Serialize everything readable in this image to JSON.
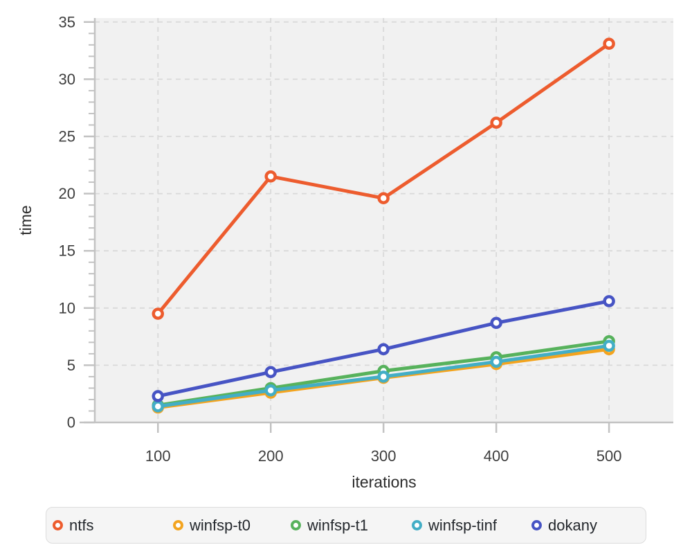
{
  "chart_data": {
    "type": "line",
    "x": [
      100,
      200,
      300,
      400,
      500
    ],
    "series": [
      {
        "name": "ntfs",
        "color": "#ed5c2e",
        "values": [
          9.5,
          21.5,
          19.6,
          26.2,
          33.1
        ]
      },
      {
        "name": "winfsp-t0",
        "color": "#f3a41f",
        "values": [
          1.3,
          2.6,
          3.9,
          5.1,
          6.4
        ]
      },
      {
        "name": "winfsp-t1",
        "color": "#57b25c",
        "values": [
          1.5,
          3.0,
          4.5,
          5.7,
          7.1
        ]
      },
      {
        "name": "winfsp-tinf",
        "color": "#43aec6",
        "values": [
          1.4,
          2.8,
          4.0,
          5.3,
          6.7
        ]
      },
      {
        "name": "dokany",
        "color": "#4754c4",
        "values": [
          2.3,
          4.4,
          6.4,
          8.7,
          10.6
        ]
      }
    ],
    "title": "",
    "xlabel": "iterations",
    "ylabel": "time",
    "xlim": [
      44,
      557
    ],
    "ylim": [
      0,
      35.35
    ],
    "y_major_ticks": [
      0,
      5,
      10,
      15,
      20,
      25,
      30,
      35
    ],
    "y_minor_step": 1,
    "x_ticks": [
      100,
      200,
      300,
      400,
      500
    ],
    "grid": true,
    "grid_style": "dashed",
    "legend_position": "bottom",
    "marker": "open-circle"
  },
  "style": {
    "page_bg": "#ffffff",
    "plot_bg": "#f1f1f1",
    "grid_color": "#d9d9d9",
    "axis_color": "#c2c2c2",
    "tick_color": "#c2c2c2",
    "tick_label_color": "#3e3e3e",
    "axis_title_color": "#2c2c2c",
    "legend_bg": "#f5f5f5",
    "legend_border": "#dcdcdc",
    "legend_text": "#23272c"
  }
}
